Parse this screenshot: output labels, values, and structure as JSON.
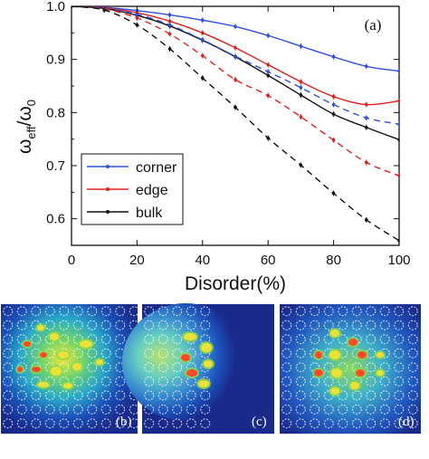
{
  "chart_data": {
    "type": "line",
    "panel_label": "(a)",
    "xlabel": "Disorder(%)",
    "ylabel": "ω_eff/ω_0",
    "xlim": [
      0,
      100
    ],
    "ylim": [
      0.55,
      1.0
    ],
    "xticks": [
      0,
      20,
      40,
      60,
      80,
      100
    ],
    "yticks": [
      0.6,
      0.7,
      0.8,
      0.9,
      1.0
    ],
    "x_tick_labels": [
      "0",
      "20",
      "40",
      "60",
      "80",
      "100"
    ],
    "y_tick_labels": [
      "0.6",
      "0.7",
      "0.8",
      "0.9",
      "1.0"
    ],
    "legend_position": "lower-left",
    "legend": [
      {
        "name": "corner",
        "color": "#2f4fd8"
      },
      {
        "name": "edge",
        "color": "#e02020"
      },
      {
        "name": "bulk",
        "color": "#111111"
      }
    ],
    "x": [
      0,
      10,
      20,
      30,
      40,
      50,
      60,
      70,
      80,
      90,
      100
    ],
    "series": [
      {
        "name": "corner",
        "color": "#2f4fd8",
        "dash": "solid",
        "values": [
          1.0,
          0.998,
          0.992,
          0.984,
          0.974,
          0.962,
          0.945,
          0.925,
          0.905,
          0.887,
          0.878
        ]
      },
      {
        "name": "edge",
        "color": "#e02020",
        "dash": "solid",
        "values": [
          1.0,
          0.997,
          0.988,
          0.972,
          0.95,
          0.922,
          0.89,
          0.858,
          0.83,
          0.815,
          0.822
        ]
      },
      {
        "name": "bulk",
        "color": "#111111",
        "dash": "solid",
        "values": [
          1.0,
          0.996,
          0.983,
          0.963,
          0.936,
          0.905,
          0.87,
          0.833,
          0.797,
          0.772,
          0.749
        ]
      },
      {
        "color": "#2f4fd8",
        "dash": "dashed",
        "values": [
          1.0,
          0.996,
          0.985,
          0.965,
          0.937,
          0.906,
          0.877,
          0.847,
          0.815,
          0.79,
          0.778
        ]
      },
      {
        "color": "#e02020",
        "dash": "dashed",
        "values": [
          1.0,
          0.995,
          0.978,
          0.948,
          0.907,
          0.862,
          0.832,
          0.792,
          0.748,
          0.706,
          0.681
        ]
      },
      {
        "color": "#111111",
        "dash": "dashed",
        "values": [
          1.0,
          0.993,
          0.965,
          0.92,
          0.865,
          0.81,
          0.752,
          0.701,
          0.648,
          0.598,
          0.559
        ]
      }
    ]
  },
  "subpanels": [
    {
      "label": "(b)",
      "pattern": "corner-mode-field",
      "colormap": "jet"
    },
    {
      "label": "(c)",
      "pattern": "edge-mode-field",
      "colormap": "jet"
    },
    {
      "label": "(d)",
      "pattern": "bulk-mode-field",
      "colormap": "jet"
    }
  ]
}
